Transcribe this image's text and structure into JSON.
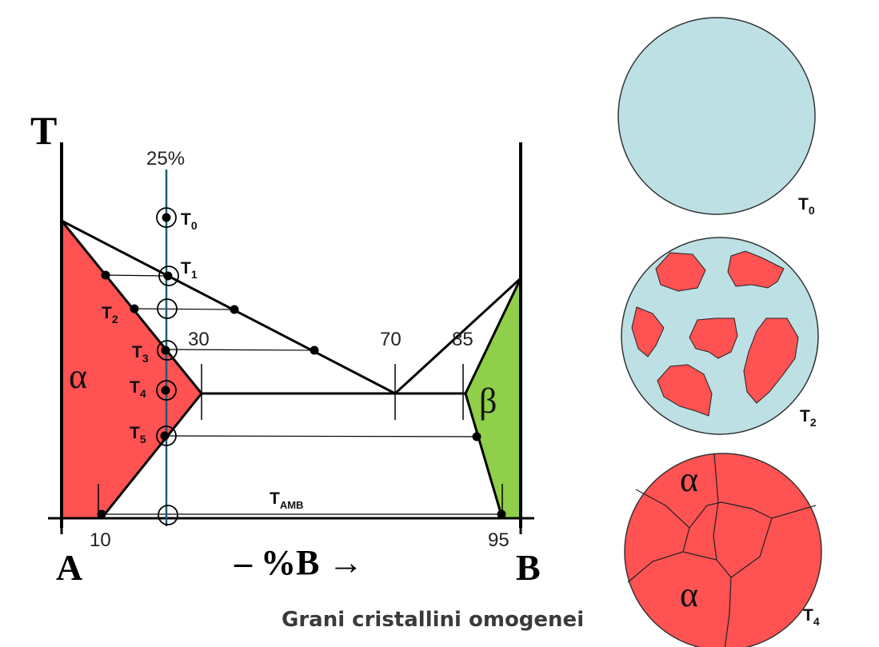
{
  "diagram": {
    "axis": {
      "t_label": "T",
      "a_label": "A",
      "b_label": "B",
      "x_label": "– %B →"
    },
    "composition_label": "25%",
    "phase_labels": {
      "alpha": "α",
      "beta": "β"
    },
    "composition_marks": [
      "30",
      "70",
      "85",
      "10",
      "95"
    ],
    "temperatures": [
      {
        "base": "T",
        "sub": "0"
      },
      {
        "base": "T",
        "sub": "1"
      },
      {
        "base": "T",
        "sub": "2"
      },
      {
        "base": "T",
        "sub": "3"
      },
      {
        "base": "T",
        "sub": "4"
      },
      {
        "base": "T",
        "sub": "5"
      },
      {
        "base": "T",
        "sub": "AMB"
      }
    ],
    "colors": {
      "alpha": "#ff5252",
      "beta": "#8fcf4a",
      "liquid": "#bde0e4",
      "composition_line": "#1d5a78"
    }
  },
  "micrographs": [
    {
      "base": "T",
      "sub": "0",
      "phase_label": ""
    },
    {
      "base": "T",
      "sub": "2",
      "phase_label": ""
    },
    {
      "base": "T",
      "sub": "4",
      "phase_label": "α"
    }
  ],
  "caption": "Grani cristallini omogenei"
}
